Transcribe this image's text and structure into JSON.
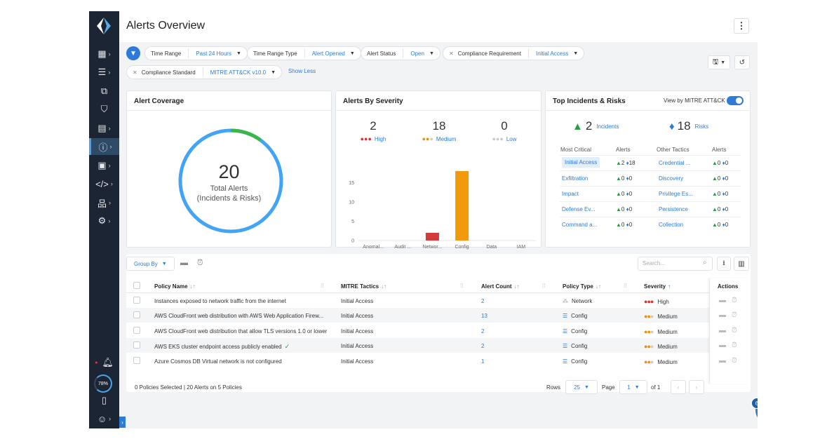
{
  "header": {
    "title": "Alerts Overview"
  },
  "filters": {
    "time_range": {
      "label": "Time Range",
      "value": "Past 24 Hours"
    },
    "time_range_type": {
      "label": "Time Range Type",
      "value": "Alert Opened"
    },
    "alert_status": {
      "label": "Alert Status",
      "value": "Open"
    },
    "compliance_requirement": {
      "label": "Compliance Requirement",
      "value": "Initial Access"
    },
    "compliance_standard": {
      "label": "Compliance Standard",
      "value": "MITRE ATT&CK v10.0"
    },
    "show_less": "Show Less"
  },
  "coverage": {
    "title": "Alert Coverage",
    "total": "20",
    "label1": "Total Alerts",
    "label2": "(Incidents & Risks)",
    "incident_fraction": 0.1
  },
  "severity": {
    "title": "Alerts By Severity",
    "high": {
      "count": "2",
      "label": "High"
    },
    "medium": {
      "count": "18",
      "label": "Medium"
    },
    "low": {
      "count": "0",
      "label": "Low"
    }
  },
  "chart_data": {
    "type": "bar",
    "categories": [
      "Anomal...",
      "Audit ...",
      "Networ...",
      "Config",
      "Data",
      "IAM"
    ],
    "series": [
      {
        "values": [
          0,
          0,
          2,
          0,
          0,
          0
        ],
        "color": "#d33a3a"
      },
      {
        "values": [
          0,
          0,
          0,
          18,
          0,
          0
        ],
        "color": "#f29a0e"
      }
    ],
    "yticks": [
      "0",
      "5",
      "10",
      "15"
    ],
    "ylim": [
      0,
      20
    ]
  },
  "top": {
    "title": "Top Incidents & Risks",
    "toggle_label": "View by MITRE ATT&CK",
    "incidents": {
      "count": "2",
      "label": "Incidents"
    },
    "risks": {
      "count": "18",
      "label": "Risks"
    },
    "headers": {
      "most_critical": "Most Critical",
      "alerts1": "Alerts",
      "other": "Other Tactics",
      "alerts2": "Alerts"
    },
    "rows": [
      {
        "critical": "Initial Access",
        "c_inc": "2",
        "c_risk": "18",
        "other": "Credential ...",
        "o_inc": "0",
        "o_risk": "0"
      },
      {
        "critical": "Exfiltration",
        "c_inc": "0",
        "c_risk": "0",
        "other": "Discovery",
        "o_inc": "0",
        "o_risk": "0"
      },
      {
        "critical": "Impact",
        "c_inc": "0",
        "c_risk": "0",
        "other": "Privilege Es...",
        "o_inc": "0",
        "o_risk": "0"
      },
      {
        "critical": "Defense Ev...",
        "c_inc": "0",
        "c_risk": "0",
        "other": "Persistence",
        "o_inc": "0",
        "o_risk": "0"
      },
      {
        "critical": "Command a...",
        "c_inc": "0",
        "c_risk": "0",
        "other": "Collection",
        "o_inc": "0",
        "o_risk": "0"
      }
    ]
  },
  "table": {
    "group_by": "Group By",
    "search_placeholder": "Search...",
    "columns": {
      "policy": "Policy Name",
      "tactics": "MITRE Tactics",
      "count": "Alert Count",
      "type": "Policy Type",
      "severity": "Severity",
      "actions": "Actions"
    },
    "rows": [
      {
        "policy": "Instances exposed to network traffic from the internet",
        "tactics": "Initial Access",
        "count": "2",
        "type": "Network",
        "severity": "High"
      },
      {
        "policy": "AWS CloudFront web distribution with AWS Web Application Firew...",
        "tactics": "Initial Access",
        "count": "13",
        "type": "Config",
        "severity": "Medium"
      },
      {
        "policy": "AWS CloudFront web distribution that allow TLS versions 1.0 or lower",
        "tactics": "Initial Access",
        "count": "2",
        "type": "Config",
        "severity": "Medium"
      },
      {
        "policy": "AWS EKS cluster endpoint access publicly enabled",
        "tactics": "Initial Access",
        "count": "2",
        "type": "Config",
        "severity": "Medium"
      },
      {
        "policy": "Azure Cosmos DB Virtual network is not configured",
        "tactics": "Initial Access",
        "count": "1",
        "type": "Config",
        "severity": "Medium"
      }
    ],
    "footer": {
      "summary": "0 Policies Selected | 20 Alerts on 5 Policies",
      "rows_label": "Rows",
      "rows_value": "25",
      "page_label": "Page",
      "page_value": "1",
      "of_label": "of 1"
    }
  },
  "rail": {
    "progress": "78%"
  },
  "help": {
    "badge": "6",
    "icon": "?"
  }
}
